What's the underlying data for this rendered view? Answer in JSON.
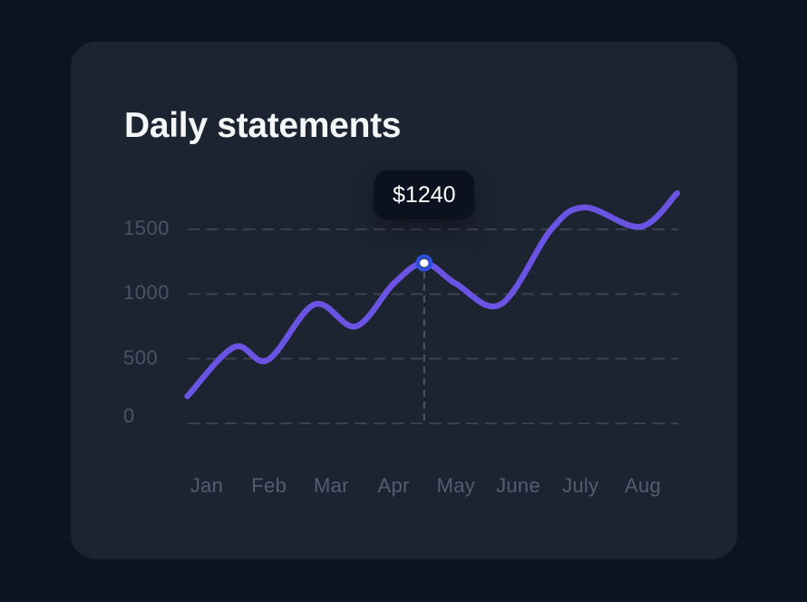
{
  "page": {
    "background": "#0C1422"
  },
  "card": {
    "title": "Daily statements",
    "background": "#1D2431",
    "title_color": "#F4F6F8"
  },
  "chart_data": {
    "type": "line",
    "title": "Daily statements",
    "categories": [
      "Jan",
      "Feb",
      "Mar",
      "Apr",
      "May",
      "June",
      "July",
      "Aug"
    ],
    "y_ticks": [
      1500,
      1000,
      500,
      0
    ],
    "ylim": [
      0,
      1850
    ],
    "grid": "dashed-horizontal",
    "legend": "none",
    "series": [
      {
        "name": "daily-statements",
        "points": [
          {
            "x": -0.31,
            "value": 210
          },
          {
            "x": 0.44,
            "value": 590
          },
          {
            "x": 0.98,
            "value": 490
          },
          {
            "x": 1.73,
            "value": 920
          },
          {
            "x": 2.39,
            "value": 750
          },
          {
            "x": 3.0,
            "value": 1080
          },
          {
            "x": 3.49,
            "value": 1240
          },
          {
            "x": 4.0,
            "value": 1080
          },
          {
            "x": 4.72,
            "value": 920
          },
          {
            "x": 5.53,
            "value": 1500
          },
          {
            "x": 6.07,
            "value": 1670
          },
          {
            "x": 6.96,
            "value": 1520
          },
          {
            "x": 7.55,
            "value": 1780
          }
        ]
      }
    ],
    "highlight": {
      "point_index": 6,
      "value": 1240,
      "tooltip_label": "$1240",
      "crosshair": "vertical-dashed"
    },
    "colors": {
      "line": "#6B53E3",
      "marker_ring": "#2E4FD9",
      "marker_fill": "#FFFFFF",
      "gridline": "#3A4251",
      "crosshair": "#4E5868",
      "y_tick_text": "#475366",
      "x_tick_text": "#515E71",
      "tooltip_background": "#0B111E",
      "tooltip_text": "#FFFFFF"
    }
  }
}
